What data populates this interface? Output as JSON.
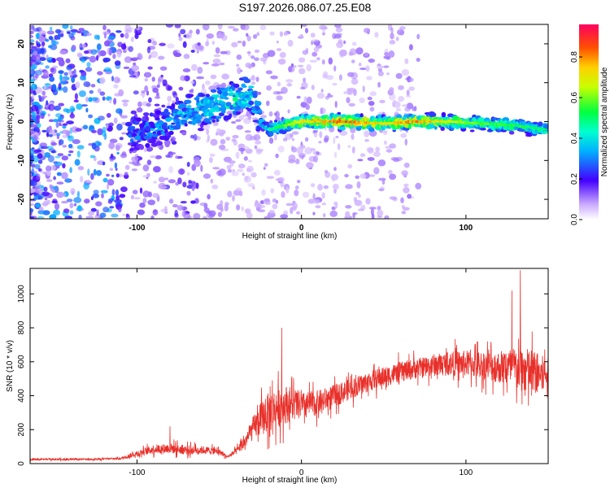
{
  "title": "S197.2026.086.07.25.E08",
  "chart_data": [
    {
      "id": "spectrogram",
      "type": "heatmap",
      "xlabel": "Height of straight line (km)",
      "ylabel": "Frequency (Hz)",
      "xlim": [
        -165,
        150
      ],
      "ylim": [
        -25,
        25
      ],
      "xticks": [
        -100,
        0,
        100
      ],
      "yticks": [
        -20,
        -10,
        0,
        10,
        20
      ],
      "colorbar": {
        "label": "Normalized spectral amplitude",
        "range": [
          0,
          0.96
        ],
        "ticks": [
          "0.0",
          "0.2",
          "0.4",
          "0.6",
          "0.8"
        ]
      },
      "ridge": [
        {
          "x": -100,
          "y": -3,
          "amp": 0.35
        },
        {
          "x": -85,
          "y": -1,
          "amp": 0.4
        },
        {
          "x": -70,
          "y": 2,
          "amp": 0.45
        },
        {
          "x": -55,
          "y": 4,
          "amp": 0.5
        },
        {
          "x": -40,
          "y": 6,
          "amp": 0.55
        },
        {
          "x": -30,
          "y": 7,
          "amp": 0.5
        },
        {
          "x": -25,
          "y": 0,
          "amp": 0.4
        },
        {
          "x": -20,
          "y": -2,
          "amp": 0.5
        },
        {
          "x": 0,
          "y": 0,
          "amp": 0.8
        },
        {
          "x": 25,
          "y": 0,
          "amp": 0.95
        },
        {
          "x": 50,
          "y": -0.5,
          "amp": 0.8
        },
        {
          "x": 70,
          "y": 0,
          "amp": 0.9
        },
        {
          "x": 90,
          "y": 0,
          "amp": 0.75
        },
        {
          "x": 110,
          "y": -0.5,
          "amp": 0.65
        },
        {
          "x": 130,
          "y": -1,
          "amp": 0.6
        },
        {
          "x": 148,
          "y": -2,
          "amp": 0.55
        }
      ]
    },
    {
      "id": "snr",
      "type": "line",
      "xlabel": "Height of straight line (km)",
      "ylabel": "SNR (10 * v/v)",
      "xlim": [
        -165,
        150
      ],
      "ylim": [
        0,
        1150
      ],
      "xticks": [
        -100,
        0,
        100
      ],
      "yticks": [
        0,
        200,
        400,
        600,
        800,
        1000
      ],
      "series": [
        {
          "name": "SNR",
          "color": "#e8302a",
          "x": [
            -165,
            -150,
            -130,
            -110,
            -100,
            -90,
            -80,
            -70,
            -60,
            -50,
            -45,
            -40,
            -35,
            -30,
            -25,
            -20,
            -15,
            -10,
            -5,
            0,
            10,
            20,
            30,
            40,
            50,
            60,
            70,
            80,
            90,
            100,
            110,
            120,
            130,
            140,
            150
          ],
          "y": [
            25,
            25,
            25,
            30,
            60,
            85,
            90,
            80,
            80,
            70,
            40,
            70,
            120,
            200,
            260,
            300,
            330,
            350,
            350,
            340,
            360,
            400,
            440,
            480,
            510,
            540,
            560,
            580,
            590,
            590,
            580,
            570,
            560,
            540,
            520
          ],
          "noise": [
            8,
            8,
            8,
            10,
            30,
            45,
            50,
            45,
            40,
            30,
            15,
            30,
            60,
            110,
            160,
            200,
            200,
            190,
            170,
            130,
            120,
            110,
            100,
            100,
            100,
            100,
            100,
            110,
            120,
            130,
            140,
            160,
            220,
            230,
            160
          ],
          "peaks": [
            {
              "x": -12,
              "y": 800
            },
            {
              "x": 133,
              "y": 1140
            },
            {
              "x": 128,
              "y": 1020
            },
            {
              "x": -80,
              "y": 220
            }
          ]
        }
      ]
    }
  ]
}
